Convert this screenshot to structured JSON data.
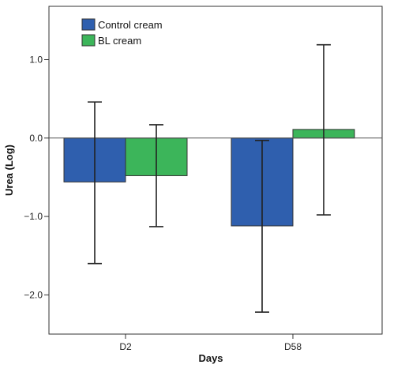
{
  "chart_data": {
    "type": "bar",
    "categories": [
      "D2",
      "D58"
    ],
    "series": [
      {
        "name": "Control cream",
        "color": "#2f5fae",
        "values": [
          -0.56,
          -1.12
        ],
        "error_low": [
          -1.6,
          -2.22
        ],
        "error_high": [
          0.46,
          -0.03
        ]
      },
      {
        "name": "BL cream",
        "color": "#3cb55a",
        "values": [
          -0.48,
          0.11
        ],
        "error_low": [
          -1.13,
          -0.98
        ],
        "error_high": [
          0.17,
          1.19
        ]
      }
    ],
    "xlabel": "Days",
    "ylabel": "Urea (Log)",
    "ylim": [
      -2.5,
      1.68
    ],
    "yticks": [
      1.0,
      0.0,
      -1.0,
      -2.0
    ],
    "ytick_labels": [
      "1.0",
      "0.0",
      "−1.0",
      "−2.0"
    ],
    "reference_line": 0.0,
    "grid": false,
    "legend_position": "top-left"
  }
}
